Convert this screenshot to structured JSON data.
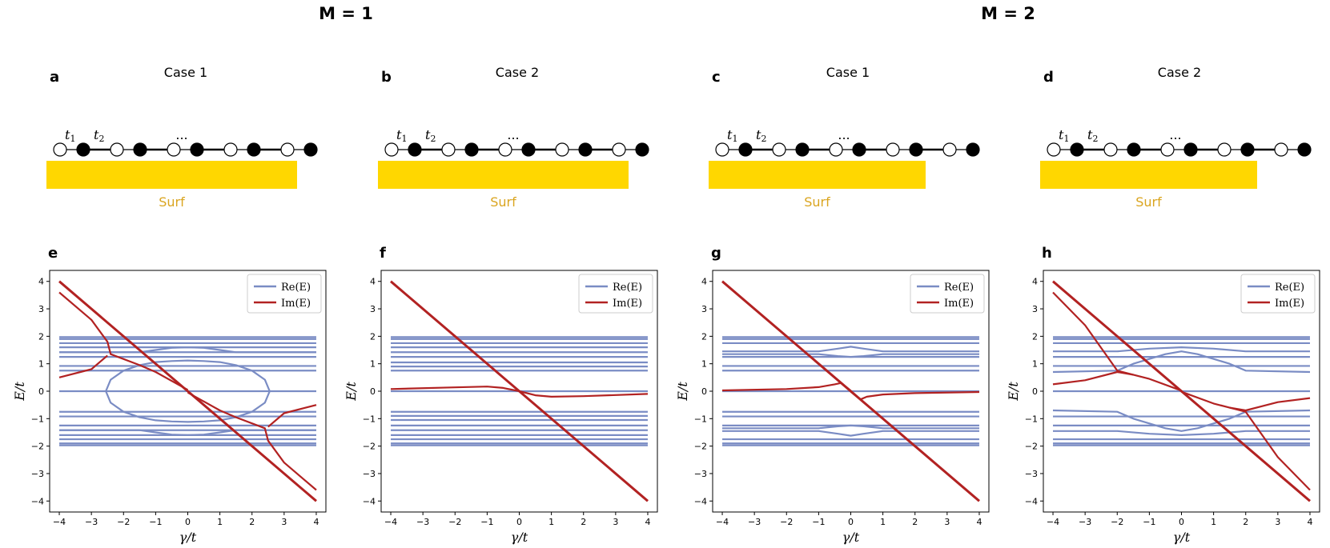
{
  "figure": {
    "group_titles": [
      "M = 1",
      "M = 2"
    ],
    "surface_label": "Surf",
    "ellipsis": "...",
    "hopping_labels": [
      {
        "symbol": "t",
        "sub": "1"
      },
      {
        "symbol": "t",
        "sub": "2"
      }
    ],
    "colors": {
      "surface": "#FFD700",
      "surface_label": "#DAA520",
      "real": "#7A8CC4",
      "imag": "#B22222",
      "chain": "#000000"
    }
  },
  "schematics": [
    {
      "letter": "a",
      "title": "Case 1",
      "sites": [
        "o",
        "f",
        "o",
        "f",
        "o",
        "f",
        "o",
        "f",
        "o",
        "f"
      ],
      "surface_sites": 9
    },
    {
      "letter": "b",
      "title": "Case 2",
      "sites": [
        "o",
        "f",
        "o",
        "f",
        "o",
        "f",
        "o",
        "f",
        "o",
        "f"
      ],
      "surface_sites": 9
    },
    {
      "letter": "c",
      "title": "Case 1",
      "sites": [
        "o",
        "f",
        "o",
        "f",
        "o",
        "f",
        "o",
        "f",
        "o",
        "f"
      ],
      "surface_sites": 8
    },
    {
      "letter": "d",
      "title": "Case 2",
      "sites": [
        "o",
        "f",
        "o",
        "f",
        "o",
        "f",
        "o",
        "f",
        "o",
        "f"
      ],
      "surface_sites": 8
    }
  ],
  "chart_data": [
    {
      "panel": "e",
      "type": "line",
      "xlabel": "γ/t",
      "ylabel": "E/t",
      "xlim": [
        -4.3,
        4.3
      ],
      "ylim": [
        -4.4,
        4.4
      ],
      "xticks": [
        -4,
        -3,
        -2,
        -1,
        0,
        1,
        2,
        3,
        4
      ],
      "yticks": [
        -4,
        -3,
        -2,
        -1,
        0,
        1,
        2,
        3,
        4
      ],
      "legend": [
        "Re(E)",
        "Im(E)"
      ],
      "legend_position": "top-right",
      "series": [
        {
          "name": "Re(E) bulk bands",
          "kind": "real",
          "flat_levels": [
            1.97,
            1.9,
            1.75,
            1.6,
            1.42,
            1.25,
            0.92,
            0.75,
            -0.75,
            -0.92,
            -1.25,
            -1.42,
            -1.6,
            -1.75,
            -1.9,
            -1.97
          ]
        },
        {
          "name": "Re(E) zero mode",
          "kind": "real",
          "x": [
            -4,
            4
          ],
          "y": [
            0,
            0
          ]
        },
        {
          "name": "Re(E) loop upper",
          "kind": "real",
          "x": [
            -2.55,
            -2.4,
            -2,
            -1.5,
            -1,
            -0.5,
            0,
            0.5,
            1,
            1.5,
            2,
            2.4,
            2.55
          ],
          "y": [
            0,
            0.42,
            0.75,
            0.95,
            1.06,
            1.1,
            1.12,
            1.1,
            1.06,
            0.95,
            0.75,
            0.42,
            0
          ]
        },
        {
          "name": "Re(E) loop lower",
          "kind": "real",
          "x": [
            -2.55,
            -2.4,
            -2,
            -1.5,
            -1,
            -0.5,
            0,
            0.5,
            1,
            1.5,
            2,
            2.4,
            2.55
          ],
          "y": [
            0,
            -0.42,
            -0.75,
            -0.95,
            -1.06,
            -1.1,
            -1.12,
            -1.1,
            -1.06,
            -0.95,
            -0.75,
            -0.42,
            0
          ]
        },
        {
          "name": "Re(E) bump upper",
          "kind": "real",
          "x": [
            -4,
            -1.5,
            -1,
            -0.5,
            0,
            0.5,
            1,
            1.5,
            4
          ],
          "y": [
            1.42,
            1.42,
            1.5,
            1.58,
            1.6,
            1.58,
            1.5,
            1.42,
            1.42
          ]
        },
        {
          "name": "Re(E) bump lower",
          "kind": "real",
          "x": [
            -4,
            -1.5,
            -1,
            -0.5,
            0,
            0.5,
            1,
            1.5,
            4
          ],
          "y": [
            -1.42,
            -1.42,
            -1.5,
            -1.58,
            -1.6,
            -1.58,
            -1.5,
            -1.42,
            -1.42
          ]
        },
        {
          "name": "Im(E) diagonal",
          "kind": "imag",
          "x": [
            -4,
            4
          ],
          "y": [
            4,
            -4
          ]
        },
        {
          "name": "Im(E) upper branch",
          "kind": "imag",
          "x": [
            -4,
            -3,
            -2.5,
            -2.4,
            -1.5,
            -1,
            0
          ],
          "y": [
            3.6,
            2.6,
            1.8,
            1.35,
            0.95,
            0.7,
            0.05
          ]
        },
        {
          "name": "Im(E) left tail",
          "kind": "imag",
          "x": [
            -4,
            -3,
            -2.5
          ],
          "y": [
            0.5,
            0.8,
            1.3
          ]
        },
        {
          "name": "Im(E) lower branch",
          "kind": "imag",
          "x": [
            0,
            1,
            1.5,
            2.4,
            2.5,
            3,
            4
          ],
          "y": [
            -0.05,
            -0.7,
            -0.95,
            -1.35,
            -1.8,
            -2.6,
            -3.6
          ]
        },
        {
          "name": "Im(E) right tail",
          "kind": "imag",
          "x": [
            2.5,
            3,
            4
          ],
          "y": [
            -1.3,
            -0.8,
            -0.5
          ]
        }
      ]
    },
    {
      "panel": "f",
      "type": "line",
      "xlabel": "γ/t",
      "ylabel": "E/t",
      "xlim": [
        -4.3,
        4.3
      ],
      "ylim": [
        -4.4,
        4.4
      ],
      "xticks": [
        -4,
        -3,
        -2,
        -1,
        0,
        1,
        2,
        3,
        4
      ],
      "yticks": [
        -4,
        -3,
        -2,
        -1,
        0,
        1,
        2,
        3,
        4
      ],
      "legend": [
        "Re(E)",
        "Im(E)"
      ],
      "legend_position": "top-right",
      "series": [
        {
          "name": "Re(E) bulk bands",
          "kind": "real",
          "flat_levels": [
            1.97,
            1.9,
            1.75,
            1.6,
            1.42,
            1.25,
            1.05,
            0.9,
            0.75,
            -0.75,
            -0.9,
            -1.05,
            -1.25,
            -1.42,
            -1.6,
            -1.75,
            -1.9,
            -1.97
          ]
        },
        {
          "name": "Re(E) zero mode",
          "kind": "real",
          "x": [
            -4,
            4
          ],
          "y": [
            0,
            0
          ]
        },
        {
          "name": "Im(E) diagonal",
          "kind": "imag",
          "x": [
            -4,
            4
          ],
          "y": [
            4,
            -4
          ]
        },
        {
          "name": "Im(E) near-zero",
          "kind": "imag",
          "x": [
            -4,
            -2,
            -1,
            -0.5,
            0,
            0.5,
            1,
            2,
            4
          ],
          "y": [
            0.08,
            0.14,
            0.17,
            0.12,
            0,
            -0.15,
            -0.2,
            -0.18,
            -0.1
          ]
        }
      ]
    },
    {
      "panel": "g",
      "type": "line",
      "xlabel": "γ/t",
      "ylabel": "E/t",
      "xlim": [
        -4.3,
        4.3
      ],
      "ylim": [
        -4.4,
        4.4
      ],
      "xticks": [
        -4,
        -3,
        -2,
        -1,
        0,
        1,
        2,
        3,
        4
      ],
      "yticks": [
        -4,
        -3,
        -2,
        -1,
        0,
        1,
        2,
        3,
        4
      ],
      "legend": [
        "Re(E)",
        "Im(E)"
      ],
      "legend_position": "top-right",
      "series": [
        {
          "name": "Re(E) bulk bands",
          "kind": "real",
          "flat_levels": [
            1.97,
            1.9,
            1.75,
            1.25,
            0.92,
            0.75,
            -0.75,
            -0.92,
            -1.25,
            -1.75,
            -1.9,
            -1.97
          ]
        },
        {
          "name": "Re(E) zero mode",
          "kind": "real",
          "x": [
            -4,
            4
          ],
          "y": [
            0,
            0
          ]
        },
        {
          "name": "Re(E) split upper a",
          "kind": "real",
          "x": [
            -4,
            -1,
            -0.4,
            0,
            0.4,
            1,
            4
          ],
          "y": [
            1.45,
            1.45,
            1.55,
            1.62,
            1.55,
            1.45,
            1.45
          ]
        },
        {
          "name": "Re(E) split upper b",
          "kind": "real",
          "x": [
            -4,
            -1,
            -0.4,
            0,
            0.4,
            1,
            4
          ],
          "y": [
            1.35,
            1.35,
            1.28,
            1.25,
            1.28,
            1.35,
            1.35
          ]
        },
        {
          "name": "Re(E) split lower a",
          "kind": "real",
          "x": [
            -4,
            -1,
            -0.4,
            0,
            0.4,
            1,
            4
          ],
          "y": [
            -1.45,
            -1.45,
            -1.55,
            -1.62,
            -1.55,
            -1.45,
            -1.45
          ]
        },
        {
          "name": "Re(E) split lower b",
          "kind": "real",
          "x": [
            -4,
            -1,
            -0.4,
            0,
            0.4,
            1,
            4
          ],
          "y": [
            -1.35,
            -1.35,
            -1.28,
            -1.25,
            -1.28,
            -1.35,
            -1.35
          ]
        },
        {
          "name": "Im(E) diagonal",
          "kind": "imag",
          "x": [
            -4,
            4
          ],
          "y": [
            4,
            -4
          ]
        },
        {
          "name": "Im(E) left branch",
          "kind": "imag",
          "x": [
            -4,
            -2,
            -1,
            -0.5,
            -0.3,
            0
          ],
          "y": [
            0.03,
            0.08,
            0.15,
            0.25,
            0.3,
            0.02
          ]
        },
        {
          "name": "Im(E) right branch",
          "kind": "imag",
          "x": [
            0,
            0.3,
            0.5,
            1,
            2,
            4
          ],
          "y": [
            -0.02,
            -0.3,
            -0.2,
            -0.12,
            -0.07,
            -0.03
          ]
        }
      ]
    },
    {
      "panel": "h",
      "type": "line",
      "xlabel": "γ/t",
      "ylabel": "E/t",
      "xlim": [
        -4.3,
        4.3
      ],
      "ylim": [
        -4.4,
        4.4
      ],
      "xticks": [
        -4,
        -3,
        -2,
        -1,
        0,
        1,
        2,
        3,
        4
      ],
      "yticks": [
        -4,
        -3,
        -2,
        -1,
        0,
        1,
        2,
        3,
        4
      ],
      "legend": [
        "Re(E)",
        "Im(E)"
      ],
      "legend_position": "top-right",
      "series": [
        {
          "name": "Re(E) bulk bands",
          "kind": "real",
          "flat_levels": [
            1.97,
            1.9,
            1.75,
            1.25,
            0.92,
            -0.92,
            -1.25,
            -1.75,
            -1.9,
            -1.97
          ]
        },
        {
          "name": "Re(E) zero mode",
          "kind": "real",
          "x": [
            -4,
            4
          ],
          "y": [
            0,
            0
          ]
        },
        {
          "name": "Re(E) bump a",
          "kind": "real",
          "x": [
            -4,
            -2,
            -1,
            0,
            1,
            2,
            4
          ],
          "y": [
            1.45,
            1.45,
            1.55,
            1.6,
            1.55,
            1.45,
            1.45
          ]
        },
        {
          "name": "Re(E) bump b",
          "kind": "real",
          "x": [
            -4,
            -2,
            -1,
            0,
            1,
            2,
            4
          ],
          "y": [
            -1.45,
            -1.45,
            -1.55,
            -1.6,
            -1.55,
            -1.45,
            -1.45
          ]
        },
        {
          "name": "Re(E) crossover upper",
          "kind": "real",
          "x": [
            -4,
            -2,
            -1.5,
            -0.5,
            0,
            0.5,
            1.5,
            2,
            4
          ],
          "y": [
            0.7,
            0.75,
            1.0,
            1.35,
            1.45,
            1.35,
            1.0,
            0.75,
            0.7
          ]
        },
        {
          "name": "Re(E) crossover lower",
          "kind": "real",
          "x": [
            -4,
            -2,
            -1.5,
            -0.5,
            0,
            0.5,
            1.5,
            2,
            4
          ],
          "y": [
            -0.7,
            -0.75,
            -1.0,
            -1.35,
            -1.45,
            -1.35,
            -1.0,
            -0.75,
            -0.7
          ]
        },
        {
          "name": "Im(E) diagonal",
          "kind": "imag",
          "x": [
            -4,
            4
          ],
          "y": [
            4,
            -4
          ]
        },
        {
          "name": "Im(E) upper branch",
          "kind": "imag",
          "x": [
            -4,
            -3,
            -2,
            -1.5,
            -1,
            0
          ],
          "y": [
            3.6,
            2.4,
            0.75,
            0.6,
            0.45,
            0.02
          ]
        },
        {
          "name": "Im(E) left tail",
          "kind": "imag",
          "x": [
            -4,
            -3,
            -2,
            -1.5
          ],
          "y": [
            0.25,
            0.4,
            0.7,
            0.6
          ]
        },
        {
          "name": "Im(E) lower branch",
          "kind": "imag",
          "x": [
            0,
            1,
            1.5,
            2,
            3,
            4
          ],
          "y": [
            -0.02,
            -0.45,
            -0.6,
            -0.75,
            -2.4,
            -3.6
          ]
        },
        {
          "name": "Im(E) right tail",
          "kind": "imag",
          "x": [
            1.5,
            2,
            3,
            4
          ],
          "y": [
            -0.6,
            -0.7,
            -0.4,
            -0.25
          ]
        }
      ]
    }
  ]
}
